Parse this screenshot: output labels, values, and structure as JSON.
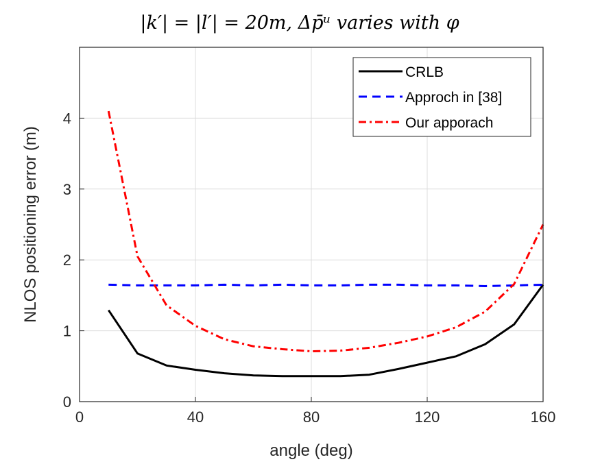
{
  "chart_data": {
    "type": "line",
    "title": "|k′| = |l′| = 20m, Δp̄ᵘ varies with φ",
    "xlabel": "angle (deg)",
    "ylabel": "NLOS positioning error (m)",
    "xlim": [
      0,
      160
    ],
    "ylim": [
      0,
      5
    ],
    "xticks": [
      0,
      40,
      80,
      120,
      160
    ],
    "yticks": [
      0,
      1,
      2,
      3,
      4
    ],
    "grid": true,
    "legend_position": "top-right",
    "x": [
      10,
      20,
      30,
      40,
      50,
      60,
      70,
      80,
      90,
      100,
      110,
      120,
      130,
      140,
      150,
      160
    ],
    "series": [
      {
        "name": "CRLB",
        "color": "#000000",
        "style": "solid",
        "values": [
          1.29,
          0.68,
          0.51,
          0.45,
          0.4,
          0.37,
          0.36,
          0.36,
          0.36,
          0.38,
          0.46,
          0.55,
          0.64,
          0.81,
          1.09,
          1.65
        ]
      },
      {
        "name": "Approch in [38]",
        "color": "#0000ff",
        "style": "dashed",
        "values": [
          1.65,
          1.64,
          1.64,
          1.64,
          1.65,
          1.64,
          1.65,
          1.64,
          1.64,
          1.65,
          1.65,
          1.64,
          1.64,
          1.63,
          1.64,
          1.65
        ]
      },
      {
        "name": "Our apporach",
        "color": "#ff0000",
        "style": "dashdot",
        "values": [
          4.1,
          2.05,
          1.36,
          1.07,
          0.88,
          0.78,
          0.74,
          0.71,
          0.72,
          0.76,
          0.83,
          0.92,
          1.05,
          1.27,
          1.66,
          2.5
        ]
      }
    ]
  }
}
